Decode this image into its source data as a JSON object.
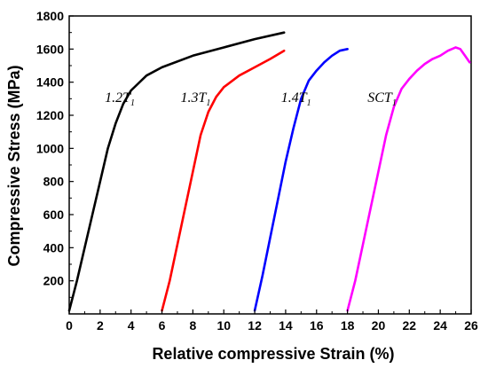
{
  "chart_data": {
    "type": "line",
    "xlabel": "Relative compressive Strain (%)",
    "ylabel": "Compressive Stress (MPa)",
    "xlim": [
      0,
      26
    ],
    "ylim": [
      0,
      1800
    ],
    "x_ticks": [
      "0",
      "2",
      "4",
      "6",
      "8",
      "10",
      "12",
      "14",
      "16",
      "18",
      "20",
      "22",
      "24",
      "26"
    ],
    "y_ticks": [
      "200",
      "400",
      "600",
      "800",
      "1000",
      "1200",
      "1400",
      "1600",
      "1800"
    ],
    "grid": false,
    "legend": "none",
    "series": [
      {
        "name": "1.2T1",
        "label_main": "1.2T",
        "label_sub": "1",
        "label_at": [
          2.3,
          1280
        ],
        "color": "#000000",
        "x": [
          0,
          0.5,
          1.0,
          1.5,
          2.0,
          2.5,
          3.0,
          3.5,
          4.0,
          5.0,
          6.0,
          8.0,
          10.0,
          12.0,
          13.9
        ],
        "y": [
          20,
          200,
          400,
          600,
          800,
          1000,
          1150,
          1270,
          1350,
          1440,
          1490,
          1560,
          1610,
          1660,
          1700
        ]
      },
      {
        "name": "1.3T1",
        "label_main": "1.3T",
        "label_sub": "1",
        "label_at": [
          7.2,
          1280
        ],
        "color": "#ff0000",
        "x": [
          6.0,
          6.5,
          7.0,
          7.5,
          8.0,
          8.5,
          9.0,
          9.5,
          10.0,
          11.0,
          12.0,
          13.0,
          13.9
        ],
        "y": [
          20,
          200,
          420,
          640,
          860,
          1080,
          1220,
          1310,
          1370,
          1440,
          1490,
          1540,
          1590
        ]
      },
      {
        "name": "1.4T1",
        "label_main": "1.4T",
        "label_sub": "1",
        "label_at": [
          13.7,
          1280
        ],
        "color": "#0000ff",
        "x": [
          12.0,
          12.5,
          13.0,
          13.5,
          14.0,
          14.5,
          15.0,
          15.5,
          16.0,
          16.5,
          17.0,
          17.5,
          18.0
        ],
        "y": [
          20,
          230,
          460,
          690,
          920,
          1120,
          1300,
          1410,
          1470,
          1520,
          1560,
          1590,
          1600
        ]
      },
      {
        "name": "SCT1",
        "label_main": "SCT",
        "label_sub": "1",
        "label_at": [
          19.3,
          1280
        ],
        "color": "#ff00ff",
        "x": [
          18.0,
          18.5,
          19.0,
          19.5,
          20.0,
          20.5,
          21.0,
          21.5,
          22.0,
          22.5,
          23.0,
          23.5,
          24.0,
          24.5,
          25.0,
          25.3,
          25.6,
          25.9
        ],
        "y": [
          20,
          200,
          420,
          640,
          860,
          1080,
          1250,
          1360,
          1420,
          1470,
          1510,
          1540,
          1560,
          1590,
          1610,
          1600,
          1560,
          1520
        ]
      }
    ]
  }
}
